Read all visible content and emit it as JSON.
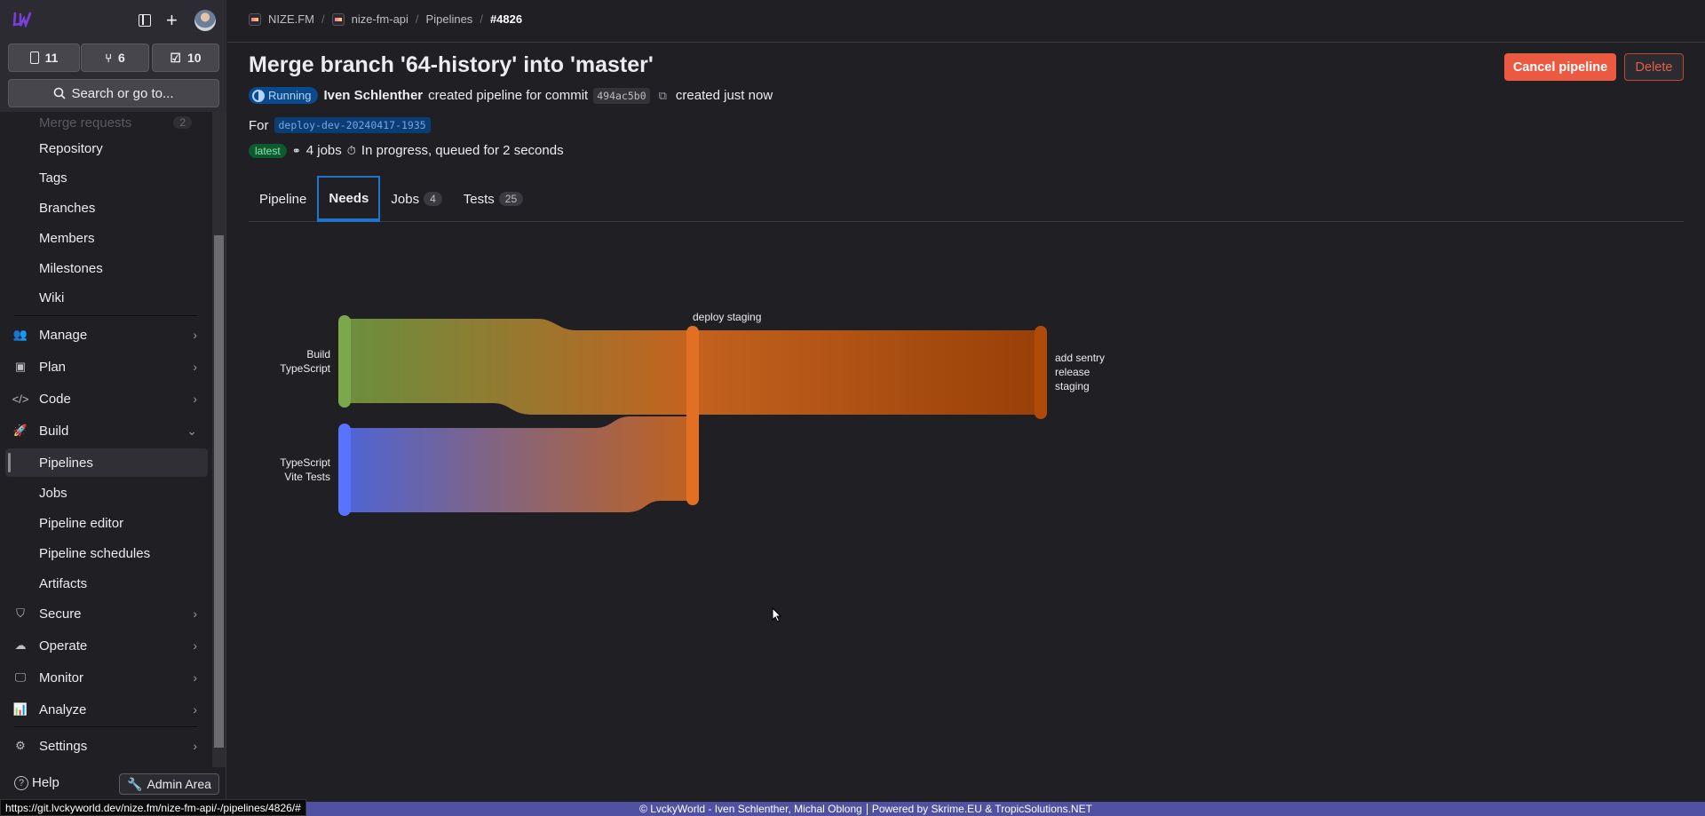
{
  "sidebar": {
    "counts": {
      "issues": "11",
      "merge_requests": "6",
      "todos": "10"
    },
    "search_label": "Search or go to...",
    "faded_item": "Merge requests",
    "faded_count": "2",
    "items": [
      {
        "label": "Repository"
      },
      {
        "label": "Tags"
      },
      {
        "label": "Branches"
      },
      {
        "label": "Members"
      },
      {
        "label": "Milestones"
      },
      {
        "label": "Wiki"
      }
    ],
    "sections": {
      "manage": "Manage",
      "plan": "Plan",
      "code": "Code",
      "build": "Build",
      "secure": "Secure",
      "operate": "Operate",
      "monitor": "Monitor",
      "analyze": "Analyze",
      "settings": "Settings"
    },
    "build_items": {
      "pipelines": "Pipelines",
      "jobs": "Jobs",
      "pipeline_editor": "Pipeline editor",
      "pipeline_schedules": "Pipeline schedules",
      "artifacts": "Artifacts"
    },
    "help": "Help",
    "admin_area": "Admin Area"
  },
  "breadcrumb": [
    "NIZE.FM",
    "nize-fm-api",
    "Pipelines",
    "#4826"
  ],
  "header": {
    "title": "Merge branch '64-history' into 'master'",
    "status": "Running",
    "author": "Iven Schlenther",
    "created_text": "created pipeline for commit",
    "commit": "494ac5b0",
    "created_when": "created just now",
    "for_label": "For",
    "ref": "deploy-dev-20240417-1935",
    "latest_badge": "latest",
    "jobs_count": "4 jobs",
    "progress": "In progress, queued for 2 seconds",
    "cancel_label": "Cancel pipeline",
    "delete_label": "Delete"
  },
  "tabs": [
    {
      "label": "Pipeline"
    },
    {
      "label": "Needs",
      "active": true
    },
    {
      "label": "Jobs",
      "count": "4"
    },
    {
      "label": "Tests",
      "count": "25"
    }
  ],
  "needs_graph": {
    "nodes": [
      {
        "id": "build",
        "label_lines": [
          "Build",
          "TypeScript"
        ],
        "color": "#7aa84a"
      },
      {
        "id": "vite",
        "label_lines": [
          "TypeScript",
          "Vite Tests"
        ],
        "color": "#5874ff"
      },
      {
        "id": "deploy",
        "label_lines": [
          "deploy staging"
        ],
        "color": "#e27022"
      },
      {
        "id": "sentry",
        "label_lines": [
          "add sentry",
          "release",
          "staging"
        ],
        "color": "#b04a08"
      }
    ],
    "links": [
      {
        "source": "build",
        "target": "deploy"
      },
      {
        "source": "vite",
        "target": "deploy"
      },
      {
        "source": "deploy",
        "target": "sentry"
      }
    ]
  },
  "footer": {
    "left": "© LvckyWorld - Iven Schlenther, Michal Oblong",
    "right": "Powered by Skrime.EU & TropicSolutions.NET"
  },
  "status_url": "https://git.lvckyworld.dev/nize.fm/nize-fm-api/-/pipelines/4826/#"
}
